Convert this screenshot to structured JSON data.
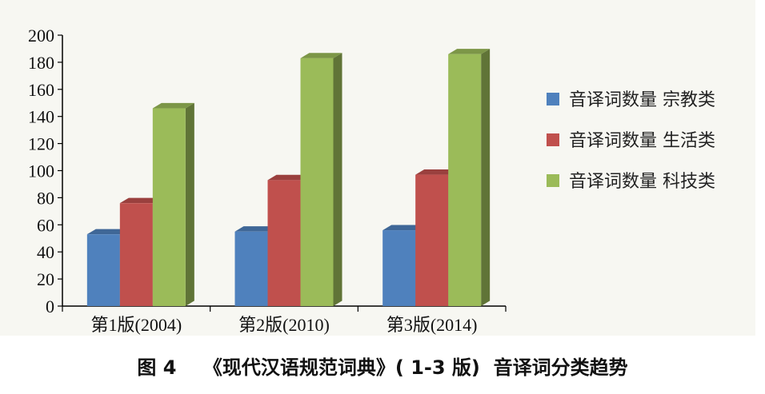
{
  "caption": "图 4    《现代汉语规范词典》( 1-3 版)  音译词分类趋势",
  "chart_data": {
    "type": "bar",
    "categories": [
      "第1版(2004)",
      "第2版(2010)",
      "第3版(2014)"
    ],
    "series": [
      {
        "name": "音译词数量 宗教类",
        "values": [
          53,
          55,
          56
        ],
        "color": "#4f81bd"
      },
      {
        "name": "音译词数量 生活类",
        "values": [
          76,
          93,
          97
        ],
        "color": "#c0504d"
      },
      {
        "name": "音译词数量 科技类",
        "values": [
          146,
          183,
          186
        ],
        "color": "#9bbb59"
      }
    ],
    "ylim": [
      0,
      200
    ],
    "yticks": [
      "0",
      "20",
      "40",
      "60",
      "80",
      "100",
      "120",
      "140",
      "160",
      "180",
      "200"
    ],
    "legend_position": "right",
    "grid": false,
    "style": "3d-clustered-column"
  }
}
